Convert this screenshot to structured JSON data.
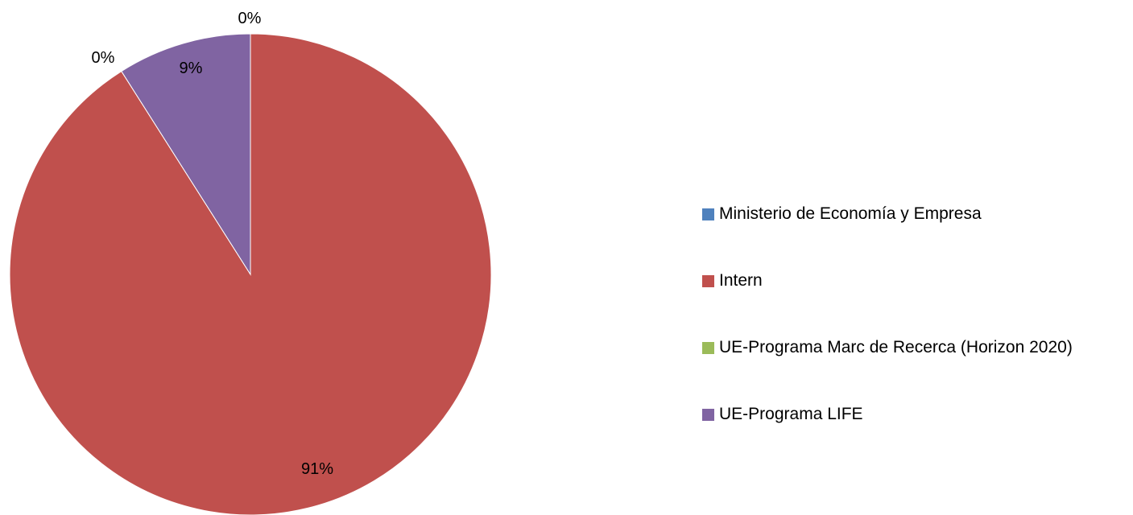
{
  "chart_data": {
    "type": "pie",
    "title": "",
    "start_angle": "top, clockwise",
    "legend_position": "right",
    "slices": [
      {
        "name": "Ministerio de Economía y Empresa",
        "value": 0,
        "label": "0%",
        "color": "#4F81BD"
      },
      {
        "name": "Intern",
        "value": 91,
        "label": "91%",
        "color": "#C0504D"
      },
      {
        "name": "UE-Programa Marc de Recerca (Horizon 2020)",
        "value": 0,
        "label": "0%",
        "color": "#9BBB59"
      },
      {
        "name": "UE-Programa LIFE",
        "value": 9,
        "label": "9%",
        "color": "#8064A2"
      }
    ]
  }
}
